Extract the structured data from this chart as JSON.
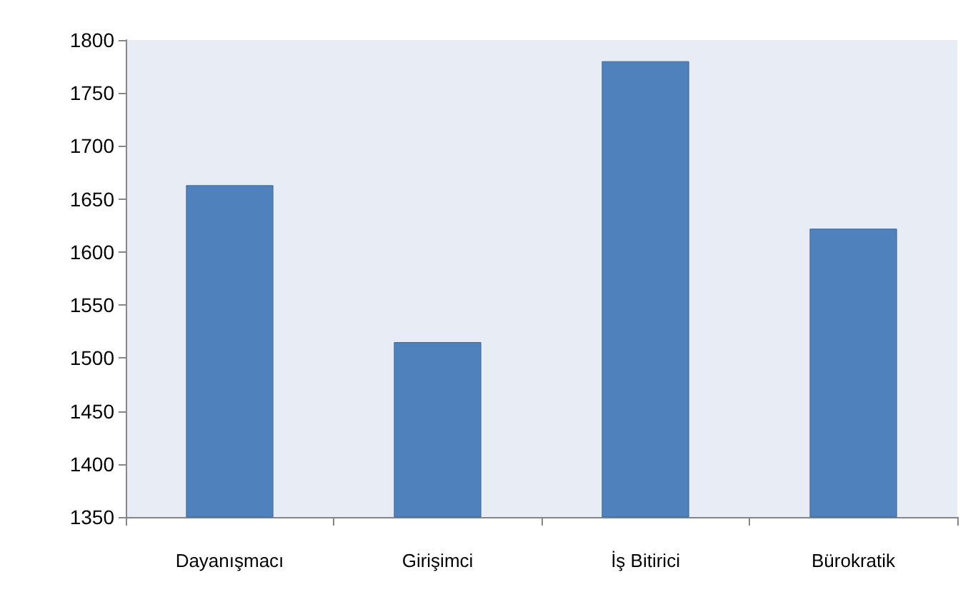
{
  "chart_data": {
    "type": "bar",
    "categories": [
      "Dayanışmacı",
      "Girişimci",
      "İş Bitirici",
      "Bürokratik"
    ],
    "values": [
      1663,
      1515,
      1780,
      1622
    ],
    "color": "#4f81bd",
    "ylim": [
      1350,
      1800
    ],
    "yticks": [
      1350,
      1400,
      1450,
      1500,
      1550,
      1600,
      1650,
      1700,
      1750,
      1800
    ],
    "grid": false
  }
}
